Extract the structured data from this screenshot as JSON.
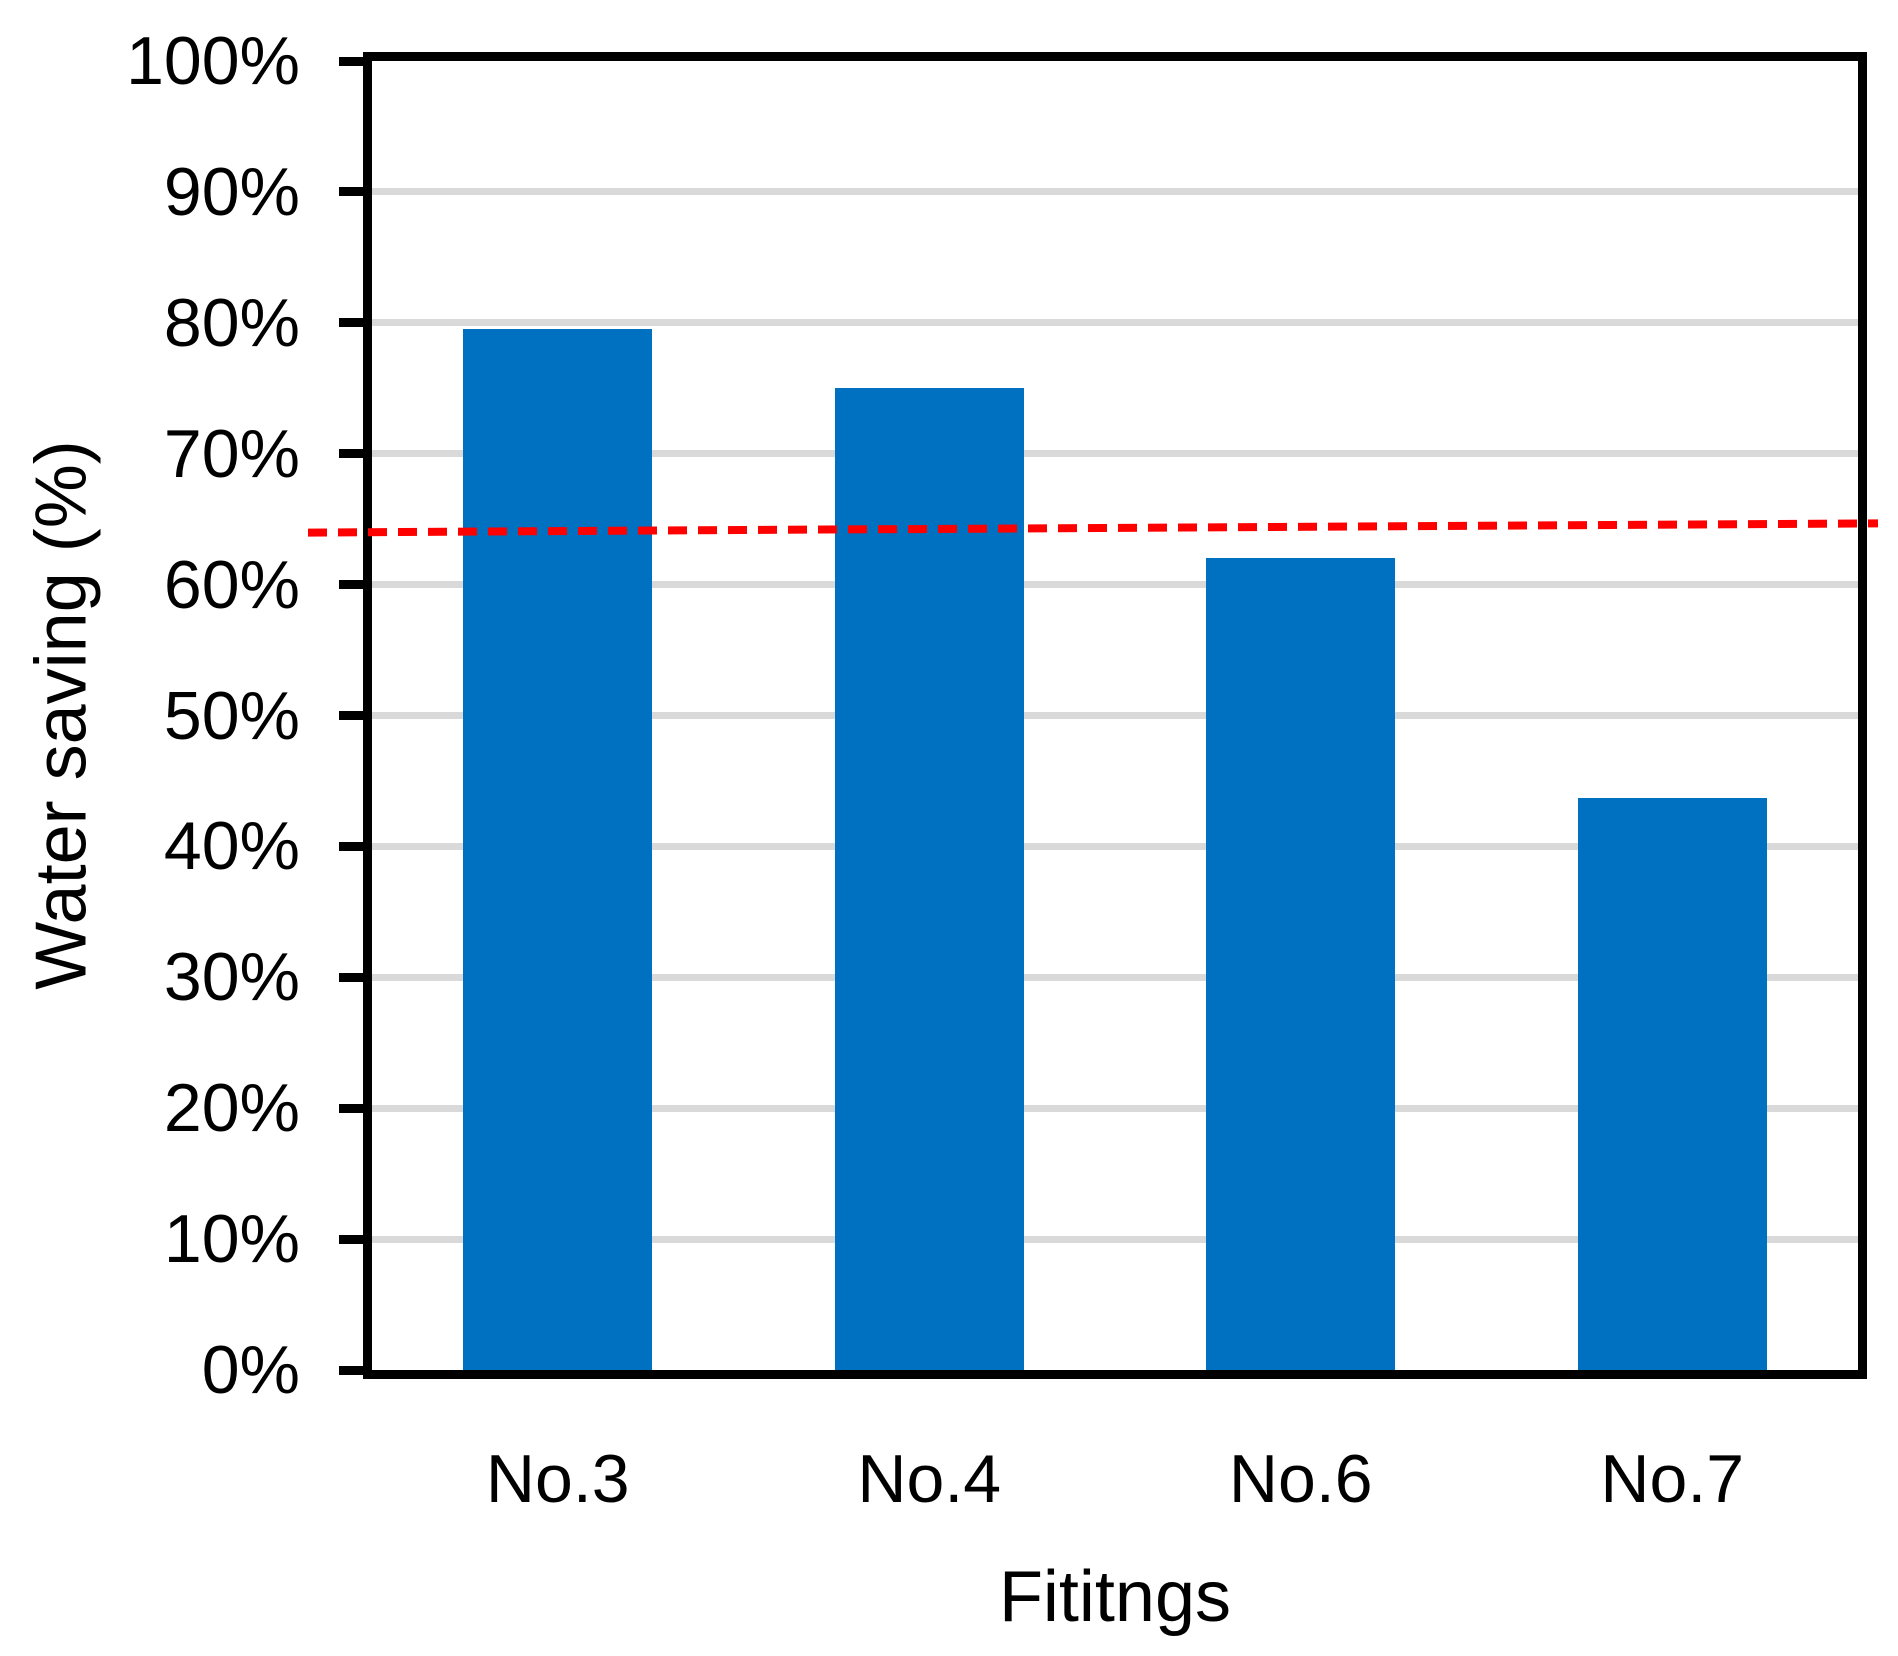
{
  "chart_data": {
    "type": "bar",
    "title": "",
    "xlabel": "Fititngs",
    "ylabel": "Water saving (%)",
    "categories": [
      "No.3",
      "No.4",
      "No.6",
      "No.7"
    ],
    "values": [
      0.795,
      0.75,
      0.62,
      0.437
    ],
    "value_format": "percent",
    "ylim": [
      0,
      1
    ],
    "ytick_step": 0.1,
    "ytick_labels": [
      "0%",
      "10%",
      "20%",
      "30%",
      "40%",
      "50%",
      "60%",
      "70%",
      "80%",
      "90%",
      "100%"
    ],
    "grid": true,
    "legend": "none",
    "reference_line": {
      "style": "dashed",
      "value_start": 0.64,
      "value_end": 0.647,
      "description": "red dashed threshold line at about 64%, slightly rising left to right, extending past plot borders"
    },
    "colors": {
      "bar": "#0070C0",
      "reference_line": "#FF0000",
      "gridline": "#D9D9D9",
      "axis": "#000000",
      "text": "#000000",
      "background": "#FFFFFF"
    }
  }
}
